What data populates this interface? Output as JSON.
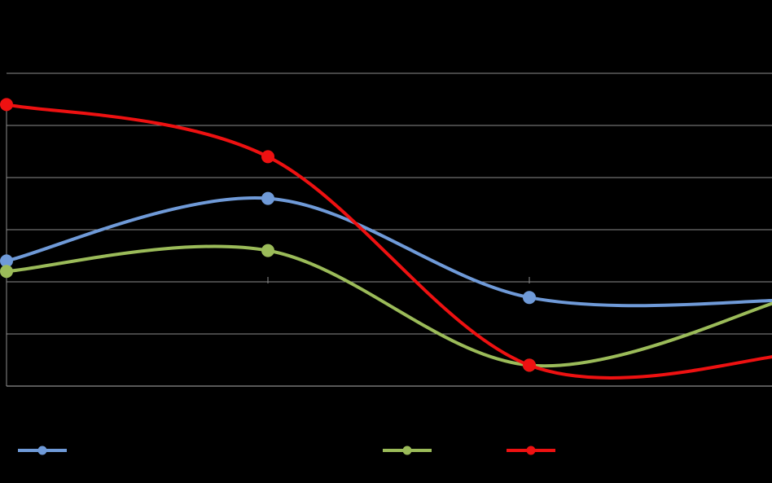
{
  "chart_data": {
    "type": "line",
    "smooth": true,
    "categories": [
      "",
      "",
      "",
      ""
    ],
    "x": [
      0,
      1,
      2,
      3
    ],
    "ylim": [
      0,
      6
    ],
    "grid": true,
    "legend_position": "bottom",
    "series": [
      {
        "name": "",
        "color": "#6f9ad8",
        "values": [
          2.4,
          3.6,
          1.7,
          1.65
        ]
      },
      {
        "name": "",
        "color": "#9bbb59",
        "values": [
          2.2,
          2.6,
          0.4,
          1.7
        ]
      },
      {
        "name": "",
        "color": "#ee1111",
        "values": [
          5.4,
          4.4,
          0.4,
          0.6
        ]
      }
    ]
  }
}
